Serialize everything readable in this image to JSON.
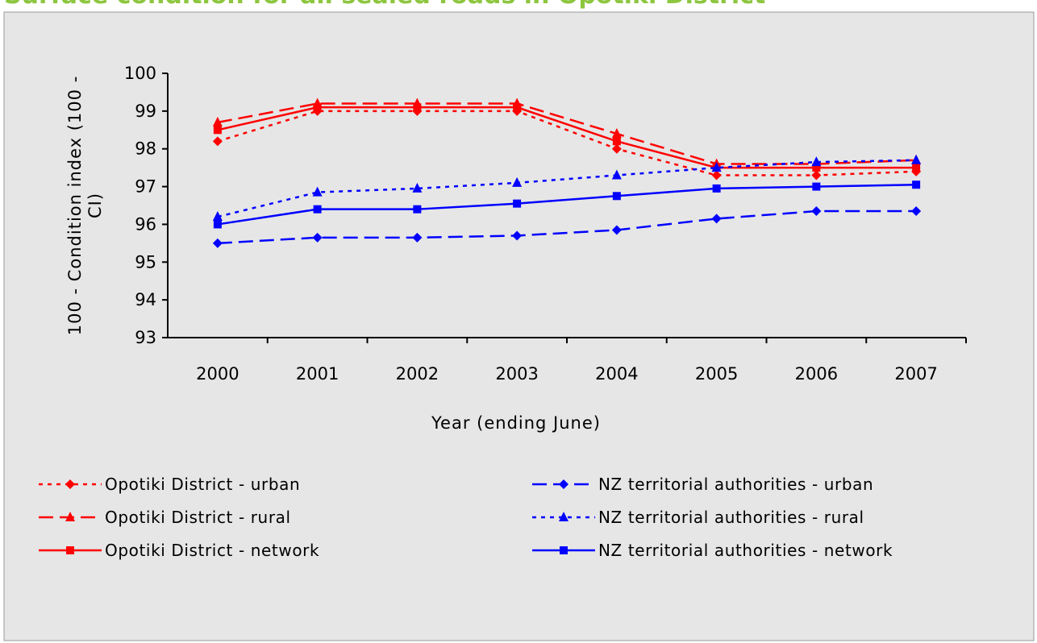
{
  "chart_data": {
    "type": "line",
    "title": "Surface condition for all sealed roads in Opotiki District",
    "x_label": "Year (ending June)",
    "y_label": [
      "100 - Condition index (100 -",
      "CI)"
    ],
    "categories": [
      "2000",
      "2001",
      "2002",
      "2003",
      "2004",
      "2005",
      "2006",
      "2007"
    ],
    "ylim": [
      93,
      100
    ],
    "yticks": [
      93,
      94,
      95,
      96,
      97,
      98,
      99,
      100
    ],
    "grid": false,
    "series": [
      {
        "name": "Opotiki District - urban",
        "color": "#ff0000",
        "line_style": "dotted",
        "marker": "diamond",
        "values": [
          98.2,
          99.0,
          99.0,
          99.0,
          98.0,
          97.3,
          97.3,
          97.4
        ]
      },
      {
        "name": "Opotiki District - rural",
        "color": "#ff0000",
        "line_style": "dashed",
        "marker": "triangle",
        "values": [
          98.7,
          99.2,
          99.2,
          99.2,
          98.4,
          97.6,
          97.6,
          97.7
        ]
      },
      {
        "name": "Opotiki District - network",
        "color": "#ff0000",
        "line_style": "solid",
        "marker": "square",
        "values": [
          98.5,
          99.1,
          99.1,
          99.1,
          98.2,
          97.5,
          97.5,
          97.5
        ]
      },
      {
        "name": "NZ territorial authorities - urban",
        "color": "#0000ff",
        "line_style": "dashed",
        "marker": "diamond",
        "values": [
          95.5,
          95.65,
          95.65,
          95.7,
          95.85,
          96.15,
          96.35,
          96.35
        ]
      },
      {
        "name": "NZ territorial authorities - rural",
        "color": "#0000ff",
        "line_style": "dotted",
        "marker": "triangle",
        "values": [
          96.2,
          96.85,
          96.95,
          97.1,
          97.3,
          97.5,
          97.65,
          97.7
        ]
      },
      {
        "name": "NZ territorial authorities - network",
        "color": "#0000ff",
        "line_style": "solid",
        "marker": "square",
        "values": [
          96.0,
          96.4,
          96.4,
          96.55,
          96.75,
          96.95,
          97.0,
          97.05
        ]
      }
    ]
  }
}
